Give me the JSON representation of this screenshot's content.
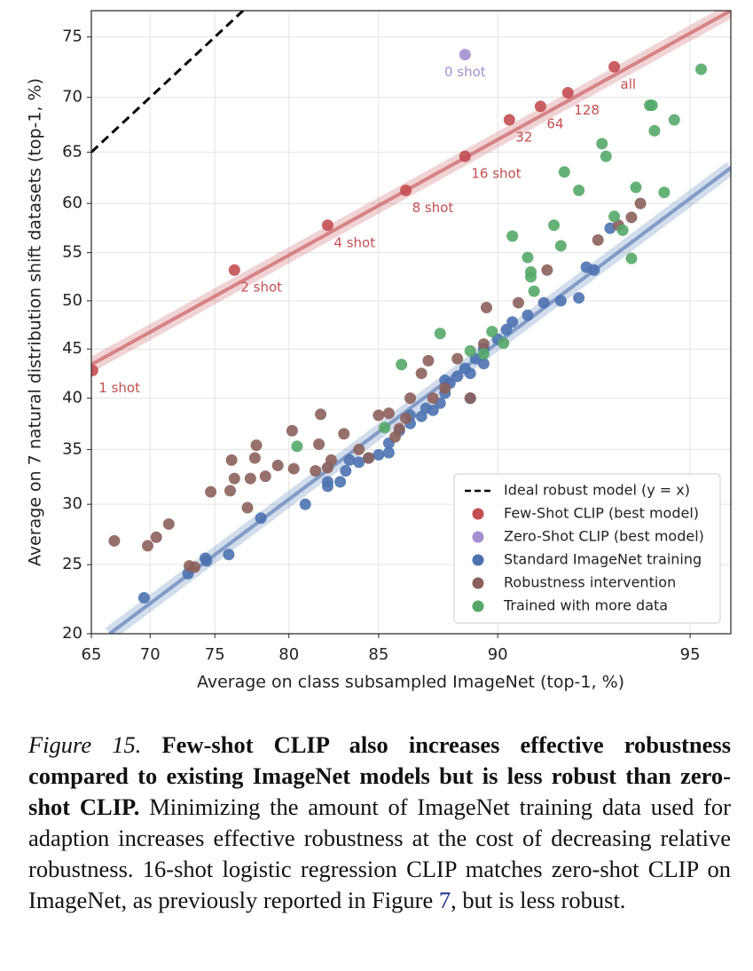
{
  "chart_data": {
    "type": "scatter",
    "xlabel": "Average on class subsampled ImageNet (top-1, %)",
    "ylabel": "Average on 7 natural distribution shift datasets (top-1, %)",
    "xscale": "logit",
    "yscale": "logit",
    "xlim": [
      65,
      95.7
    ],
    "ylim": [
      20,
      77
    ],
    "xticks": [
      65,
      70,
      75,
      80,
      85,
      90,
      95
    ],
    "yticks": [
      20,
      25,
      30,
      35,
      40,
      45,
      50,
      55,
      60,
      65,
      70,
      75
    ],
    "grid": true,
    "legend": "lower right",
    "series": [
      {
        "name": "Ideal robust model (y = x)",
        "color": "#000000",
        "style": "dashed",
        "x": [
          65,
          78
        ],
        "y": [
          65,
          78
        ]
      },
      {
        "name": "Few-Shot CLIP (best model)",
        "color": "#c44e52",
        "x": [
          65.1,
          76.4,
          82.3,
          86.3,
          88.8,
          90.4,
          91.4,
          92.2,
          93.4
        ],
        "y": [
          42.8,
          53.2,
          57.8,
          61.3,
          64.6,
          68.0,
          69.2,
          70.4,
          72.6
        ],
        "point_labels": [
          "1 shot",
          "2 shot",
          "4 shot",
          "8 shot",
          "16 shot",
          "32",
          "64",
          "128",
          "all"
        ],
        "fit": {
          "x": [
            65,
            95.7
          ],
          "y": [
            43.4,
            77
          ]
        }
      },
      {
        "name": "Zero-Shot CLIP (best model)",
        "color": "#a48fd0",
        "x": [
          88.8
        ],
        "y": [
          73.6
        ],
        "point_labels": [
          "0 shot"
        ]
      },
      {
        "name": "Standard ImageNet training",
        "color": "#4c72b0",
        "x": [
          69.5,
          73,
          74.3,
          74.4,
          76,
          78.2,
          81,
          82.3,
          82.3,
          83,
          83.3,
          83.5,
          84,
          84.5,
          85,
          85.5,
          85.5,
          86,
          86.5,
          87,
          87.2,
          87.5,
          87.8,
          88,
          88.2,
          88.5,
          88.8,
          89,
          89.2,
          89.5,
          90,
          90.3,
          90.5,
          91,
          91.5,
          92,
          92.5,
          92.7,
          92.9,
          93.3,
          86.5,
          88,
          89,
          89.5
        ],
        "y": [
          22.5,
          24.3,
          25.5,
          25.3,
          25.8,
          28.8,
          30,
          31.6,
          32,
          32,
          33,
          34,
          33.8,
          34.2,
          34.5,
          34.7,
          35.6,
          36.8,
          37.5,
          38.2,
          39,
          38.8,
          39.5,
          40.5,
          41.5,
          42.2,
          43,
          42.5,
          44,
          45,
          46,
          47,
          47.8,
          48.5,
          49.8,
          50,
          50.3,
          53.5,
          53.2,
          57.5,
          38.3,
          41.8,
          40,
          43.5
        ],
        "fit": {
          "x": [
            66.6,
            95.7
          ],
          "y": [
            20,
            63.5
          ]
        }
      },
      {
        "name": "Robustness intervention",
        "color": "#8c615c",
        "x": [
          67,
          69.8,
          70.5,
          71.5,
          73.1,
          73.5,
          74.7,
          76.1,
          76.2,
          76.4,
          77.3,
          77.5,
          77.8,
          77.9,
          78.5,
          79.3,
          80.2,
          80.3,
          81.6,
          81.8,
          81.9,
          82.3,
          82.5,
          83.2,
          84,
          84.5,
          85,
          85.5,
          85.8,
          86,
          86.3,
          86.5,
          87,
          87.3,
          87.5,
          88,
          88.5,
          89,
          89.5,
          89.6,
          90.7,
          91.6,
          93,
          93.5,
          93.8,
          94
        ],
        "y": [
          26.9,
          26.5,
          27.2,
          28.3,
          24.9,
          24.8,
          31.1,
          31.2,
          34,
          32.3,
          29.7,
          32.3,
          34.2,
          35.4,
          32.5,
          33.5,
          36.8,
          33.2,
          33,
          35.5,
          38.4,
          33.3,
          34,
          36.5,
          35,
          34.2,
          38.3,
          38.5,
          36.2,
          37,
          38,
          40,
          42.5,
          43.8,
          40,
          41,
          44,
          40,
          45.5,
          49.3,
          49.8,
          53.2,
          56.3,
          57.8,
          58.6,
          60
        ]
      },
      {
        "name": "Trained with more data",
        "color": "#55a868",
        "x": [
          80.5,
          85.3,
          86.1,
          87.8,
          89,
          89.5,
          89.8,
          90.2,
          90.5,
          91,
          91.1,
          91.1,
          91.2,
          91.8,
          92,
          92.1,
          92.5,
          93.1,
          93.2,
          93.4,
          93.6,
          93.8,
          93.9,
          94.3,
          94.5,
          94.7,
          94.2,
          94.25,
          95.2
        ],
        "y": [
          35.3,
          37.1,
          43.4,
          46.6,
          44.8,
          44.5,
          46.8,
          45.6,
          56.7,
          54.5,
          52.5,
          53,
          51,
          57.8,
          55.7,
          63.1,
          61.3,
          65.8,
          64.6,
          58.7,
          57.3,
          54.4,
          61.6,
          67,
          61.1,
          68,
          69.3,
          69.3,
          72.4
        ]
      }
    ]
  },
  "caption": {
    "label": "Figure 15.",
    "bold": "Few-shot CLIP also increases effective robustness compared to existing ImageNet models but is less robust than zero-shot CLIP.",
    "text": "Minimizing the amount of ImageNet training data used for adaption increases effective robustness at the cost of decreasing relative robustness. 16-shot logistic regression CLIP matches zero-shot CLIP on ImageNet, as previously reported in Figure ",
    "ref": "7",
    "end": ", but is less robust."
  }
}
